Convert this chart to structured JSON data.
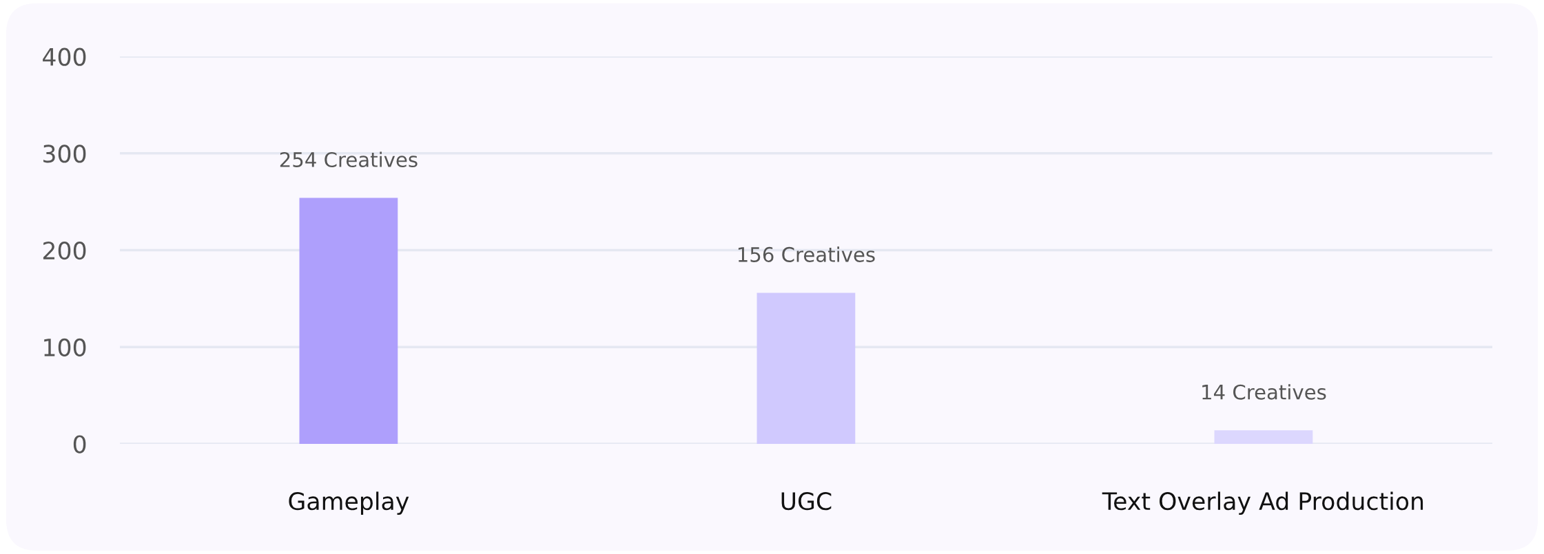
{
  "chart_data": {
    "type": "bar",
    "categories": [
      "Gameplay",
      "UGC",
      "Text Overlay Ad Production"
    ],
    "values": [
      254,
      156,
      14
    ],
    "colors": [
      "#ae9ffc",
      "#d0c9fe",
      "#dcd7fe"
    ],
    "value_labels": [
      "254 Creatives",
      "156 Creatives",
      "14 Creatives"
    ],
    "ylim": [
      0,
      400
    ],
    "yticks": [
      0,
      100,
      200,
      300,
      400
    ],
    "grid": "y",
    "legend": false
  }
}
